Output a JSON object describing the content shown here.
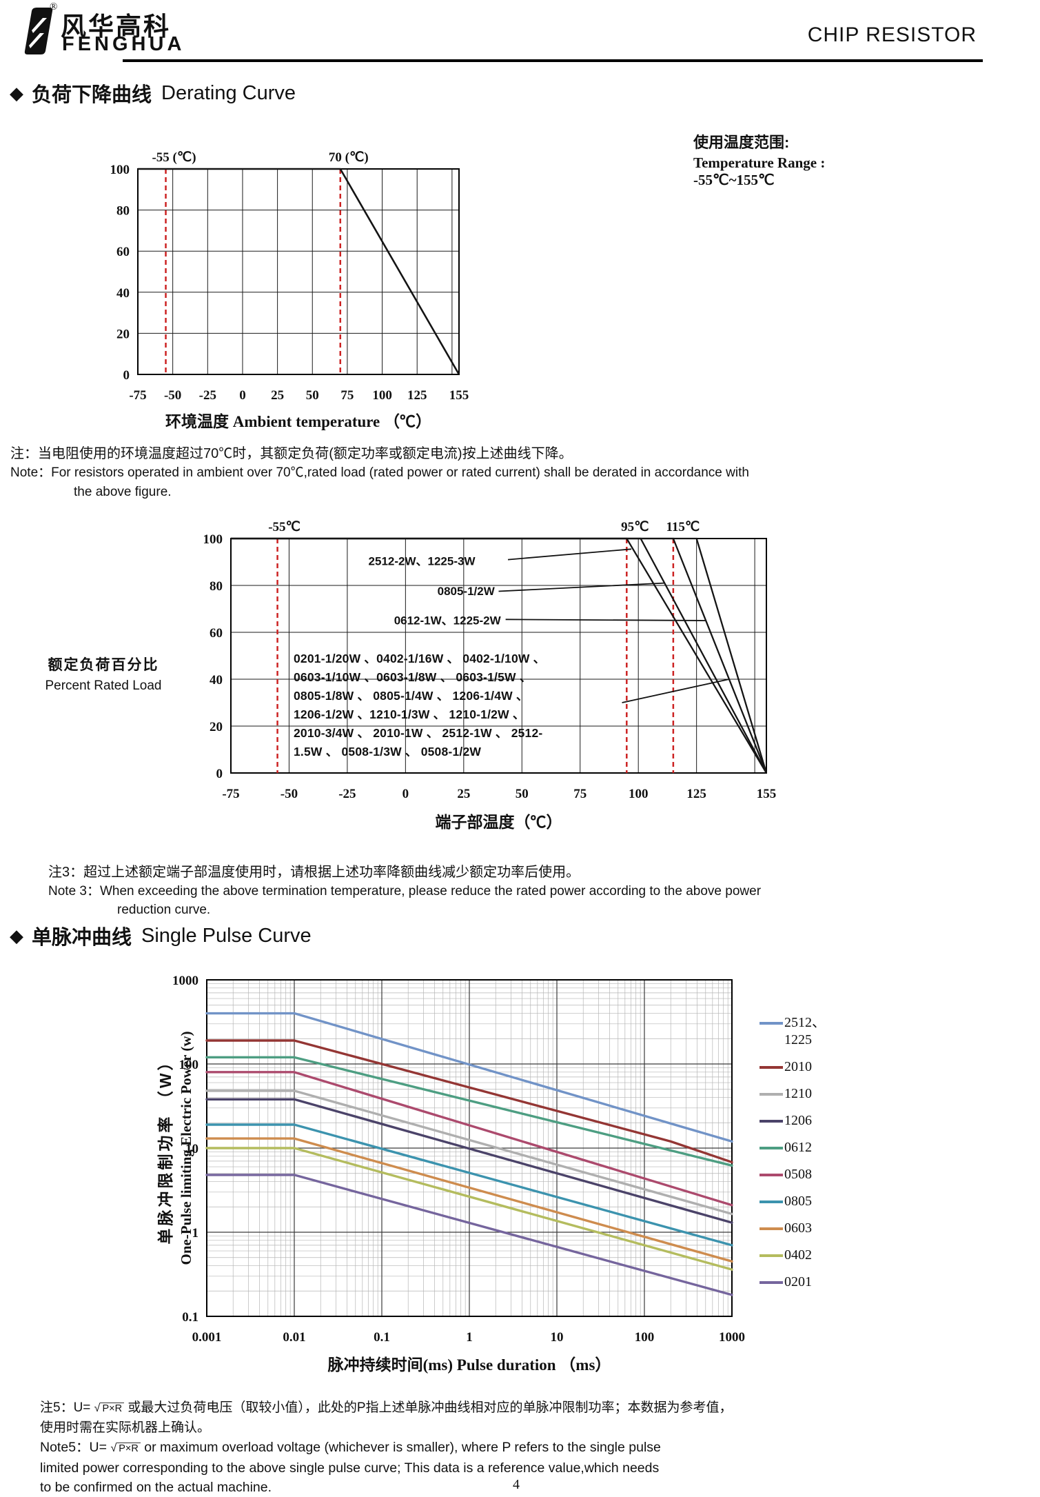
{
  "header": {
    "brand_zh": "风华高科",
    "brand_en": "FENGHUA",
    "reg": "®",
    "doc_title": "CHIP RESISTOR"
  },
  "derating": {
    "bullet": "◆",
    "title_zh": "负荷下降曲线",
    "title_en": "Derating Curve",
    "temp_range": {
      "zh": "使用温度范围:",
      "en": "Temperature Range :",
      "range": "-55℃~155℃"
    },
    "note": {
      "zh": "注：当电阻使用的环境温度超过70℃时，其额定负荷(额定功率或额定电流)按上述曲线下降。",
      "en1": "Note：For resistors operated in ambient over 70℃,rated load (rated power or rated current) shall be derated in accordance with",
      "en2": "the above figure."
    },
    "note3": {
      "zh": "注3：超过上述额定端子部温度使用时，请根据上述功率降额曲线减少额定功率后使用。",
      "en1": "Note 3：When exceeding the above termination temperature, please reduce the rated power according to the above power",
      "en2": "reduction curve."
    }
  },
  "pulse": {
    "bullet": "◆",
    "title_zh": "单脉冲曲线",
    "title_en": "Single Pulse Curve",
    "note5": {
      "zh_prefix": "注5：U=",
      "sqrt_sign": "√",
      "radical": "P×R",
      "zh_rest": "或最大过负荷电压（取较小值），此处的P指上述单脉冲曲线相对应的单脉冲限制功率；本数据为参考值，",
      "zh2": "使用时需在实际机器上确认。",
      "en_prefix": "Note5：U=",
      "en_rest": "or maximum overload voltage (whichever is smaller), where P refers to the single pulse",
      "en2": "limited power corresponding to the above single pulse curve; This data is a reference value,which needs",
      "en3": "to be confirmed on the actual machine."
    }
  },
  "footer": {
    "page": "4"
  },
  "chart_data": [
    {
      "id": "derating-ambient",
      "type": "line",
      "xlabel": "环境温度 Ambient temperature （℃）",
      "xlim": [
        -75,
        155
      ],
      "ylim": [
        0,
        100
      ],
      "xticks": [
        -75,
        -50,
        -25,
        0,
        25,
        50,
        75,
        100,
        125,
        155
      ],
      "yticks": [
        0,
        20,
        40,
        60,
        80,
        100
      ],
      "grid": {
        "x_step": 25,
        "y_step": 20
      },
      "marker_color": "#CC2222",
      "markers": [
        {
          "x": -55,
          "label": "-55 (℃)",
          "dx": 12
        },
        {
          "x": 70,
          "label": "70 (℃)",
          "dx": 12
        }
      ],
      "series": [
        {
          "name": "rated load (%)",
          "color": "#141414",
          "points": [
            [
              -75,
              100
            ],
            [
              70,
              100
            ],
            [
              155,
              0
            ]
          ]
        }
      ]
    },
    {
      "id": "derating-terminal",
      "type": "line",
      "xlabel": "端子部温度（℃）",
      "ylabel_zh": "额定负荷百分比",
      "ylabel_en": "Percent Rated Load",
      "xlim": [
        -75,
        155
      ],
      "ylim": [
        0,
        100
      ],
      "xticks": [
        -75,
        -50,
        -25,
        0,
        25,
        50,
        75,
        100,
        125,
        155
      ],
      "yticks": [
        0,
        20,
        40,
        60,
        80,
        100
      ],
      "grid": {
        "x_step": 25,
        "y_step": 20
      },
      "marker_color": "#CC2222",
      "markers": [
        {
          "x": -55,
          "label": "-55℃",
          "dx": 10
        },
        {
          "x": 95,
          "label": "95℃",
          "dx": 12
        },
        {
          "x": 115,
          "label": "115℃",
          "dx": 14
        }
      ],
      "series": [
        {
          "name": "2512-2W、1225-3W",
          "color": "#141414",
          "points": [
            [
              -75,
              100
            ],
            [
              95,
              100
            ],
            [
              155,
              0
            ]
          ]
        },
        {
          "name": "0805-1/2W",
          "color": "#141414",
          "points": [
            [
              -75,
              100
            ],
            [
              101,
              100
            ],
            [
              155,
              0
            ]
          ]
        },
        {
          "name": "0612-1W、1225-2W",
          "color": "#141414",
          "points": [
            [
              -75,
              100
            ],
            [
              115,
              100
            ],
            [
              155,
              0
            ]
          ]
        },
        {
          "name": "standard power group",
          "color": "#141414",
          "points": [
            [
              -75,
              100
            ],
            [
              125,
              100
            ],
            [
              155,
              0
            ]
          ]
        }
      ],
      "annotations": [
        {
          "text": "2512-2W、1225-3W",
          "x": 7,
          "y": 91
        },
        {
          "text": "0805-1/2W",
          "x": 26,
          "y": 77.5
        },
        {
          "text": "0612-1W、1225-2W",
          "x": 18,
          "y": 65.5
        }
      ],
      "leaders": [
        {
          "from": [
            44,
            91
          ],
          "to": [
            97,
            95.5
          ]
        },
        {
          "from": [
            40,
            77.5
          ],
          "to": [
            111,
            81
          ]
        },
        {
          "from": [
            43,
            65.5
          ],
          "to": [
            129,
            65
          ]
        },
        {
          "from": [
            93,
            30
          ],
          "to": [
            139,
            40
          ]
        }
      ],
      "size_group": [
        "0201-1/20W 、0402-1/16W 、 0402-1/10W 、",
        "0603-1/10W 、0603-1/8W  、 0603-1/5W  、",
        "0805-1/8W  、 0805-1/4W  、 1206-1/4W  、",
        "1206-1/2W 、1210-1/3W  、 1210-1/2W  、",
        "2010-3/4W 、 2010-1W  、 2512-1W  、 2512-",
        "1.5W  、 0508-1/3W 、 0508-1/2W"
      ]
    },
    {
      "id": "single-pulse",
      "type": "line-loglog",
      "xlabel_zh": "脉冲持续时间(ms)",
      "xlabel_en": "Pulse duration （ms）",
      "ylabel_zh": "单脉冲限制功率 （W）",
      "ylabel_en": "One-Pulse limiting Electric Power (w)",
      "xlim": [
        0.001,
        1000
      ],
      "ylim": [
        0.1,
        1000
      ],
      "xticks": [
        0.001,
        0.01,
        0.1,
        1,
        10,
        100,
        1000
      ],
      "xtick_labels": [
        "0.001",
        "0.01",
        "0.1",
        "1",
        "10",
        "100",
        "1000"
      ],
      "yticks": [
        1000,
        100,
        10,
        1,
        0.1
      ],
      "ytick_labels": [
        "1000",
        "100",
        "10",
        "1",
        "0.1"
      ],
      "legend_position": "right",
      "legend": [
        {
          "label": "2512、",
          "label2": "1225",
          "color": "#7193C7"
        },
        {
          "label": "2010",
          "color": "#943634"
        },
        {
          "label": "1210",
          "color": "#AFAFAF"
        },
        {
          "label": "1206",
          "color": "#4B4369"
        },
        {
          "label": "0612",
          "color": "#4D9E82"
        },
        {
          "label": "0508",
          "color": "#AC4A6D"
        },
        {
          "label": "0805",
          "color": "#3C93AE"
        },
        {
          "label": "0603",
          "color": "#CE8C4E"
        },
        {
          "label": "0402",
          "color": "#B4BC5E"
        },
        {
          "label": "0201",
          "color": "#75659D"
        }
      ],
      "series": [
        {
          "name": "2512、1225",
          "color": "#7193C7",
          "points": [
            [
              0.001,
              400
            ],
            [
              0.01,
              400
            ],
            [
              1000,
              12
            ]
          ]
        },
        {
          "name": "2010",
          "color": "#943634",
          "points": [
            [
              0.001,
              190
            ],
            [
              0.01,
              190
            ],
            [
              200,
              12
            ],
            [
              1000,
              6.8
            ]
          ]
        },
        {
          "name": "0612",
          "color": "#4D9E82",
          "points": [
            [
              0.001,
              120
            ],
            [
              0.01,
              120
            ],
            [
              1000,
              6.2
            ]
          ]
        },
        {
          "name": "0508",
          "color": "#AC4A6D",
          "points": [
            [
              0.001,
              80
            ],
            [
              0.01,
              80
            ],
            [
              1000,
              2.1
            ]
          ]
        },
        {
          "name": "1210",
          "color": "#AFAFAF",
          "points": [
            [
              0.001,
              48
            ],
            [
              0.01,
              48
            ],
            [
              1000,
              1.65
            ]
          ]
        },
        {
          "name": "1206",
          "color": "#4B4369",
          "points": [
            [
              0.001,
              38
            ],
            [
              0.01,
              38
            ],
            [
              1000,
              1.3
            ]
          ]
        },
        {
          "name": "0805",
          "color": "#3C93AE",
          "points": [
            [
              0.001,
              19
            ],
            [
              0.01,
              19
            ],
            [
              1000,
              0.7
            ]
          ]
        },
        {
          "name": "0603",
          "color": "#CE8C4E",
          "points": [
            [
              0.001,
              13
            ],
            [
              0.01,
              13
            ],
            [
              1000,
              0.45
            ]
          ]
        },
        {
          "name": "0402",
          "color": "#B4BC5E",
          "points": [
            [
              0.001,
              10
            ],
            [
              0.01,
              10
            ],
            [
              1000,
              0.36
            ]
          ]
        },
        {
          "name": "0201",
          "color": "#75659D",
          "points": [
            [
              0.001,
              4.8
            ],
            [
              0.01,
              4.8
            ],
            [
              1000,
              0.18
            ]
          ]
        }
      ]
    }
  ]
}
